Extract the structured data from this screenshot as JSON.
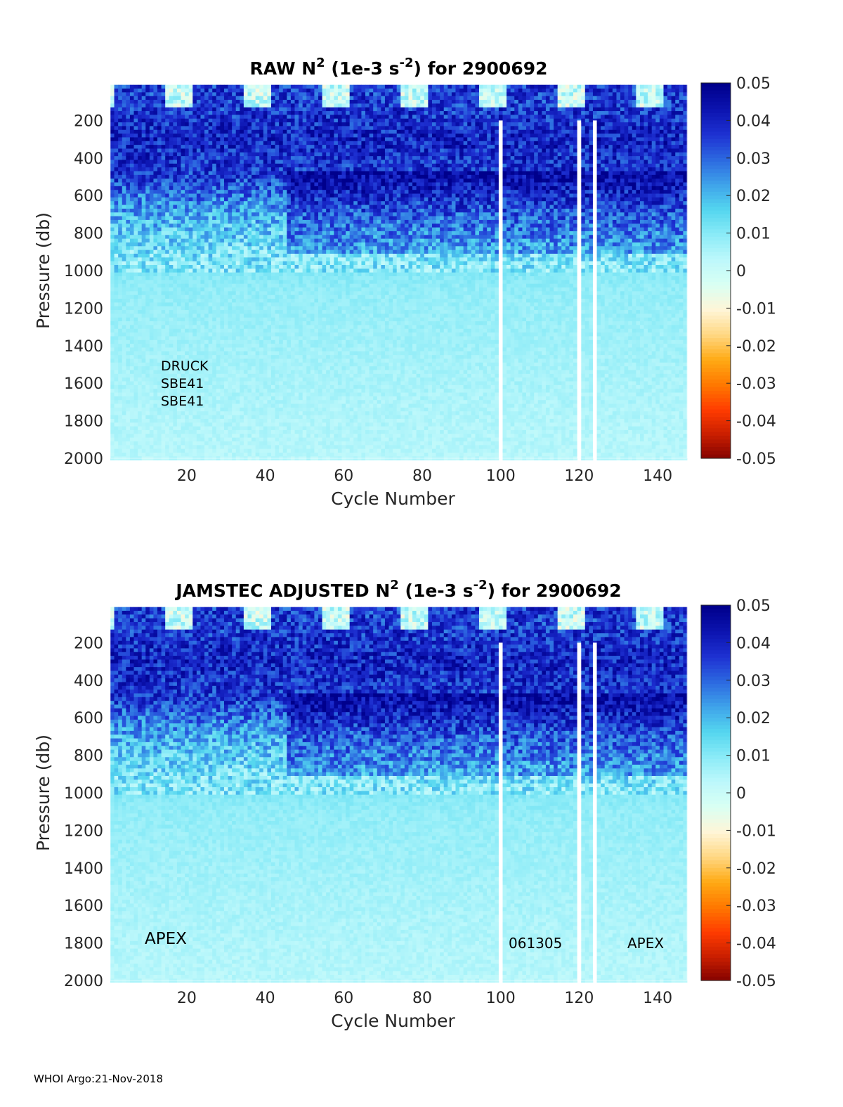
{
  "footer": "WHOI Argo:21-Nov-2018",
  "colors": {
    "colormap": [
      "#800000",
      "#c81e00",
      "#ff3c00",
      "#ff7800",
      "#ffaa14",
      "#ffd782",
      "#fff5d7",
      "#d9fff3",
      "#bdf8fb",
      "#8bebf7",
      "#54d6ef",
      "#3fa3ea",
      "#2c69e0",
      "#1e31d2",
      "#0c14b0",
      "#00008c"
    ],
    "missing": "#ffffff"
  },
  "chart_data": [
    {
      "type": "heatmap",
      "title": "RAW N² (1e-3 s⁻²) for 2900692",
      "title_parts": {
        "pre": "RAW N",
        "sup1": "2",
        "mid": " (1e-3 s",
        "sup2": "-2",
        "post": ") for 2900692"
      },
      "xlabel": "Cycle Number",
      "ylabel": "Pressure (db)",
      "xlim": [
        1,
        147
      ],
      "ylim": [
        2000,
        0
      ],
      "y_reversed": true,
      "xticks": [
        20,
        40,
        60,
        80,
        100,
        120,
        140
      ],
      "yticks": [
        200,
        400,
        600,
        800,
        1000,
        1200,
        1400,
        1600,
        1800,
        2000
      ],
      "colorbar": {
        "min": -0.05,
        "max": 0.05,
        "ticks": [
          "0.05",
          "0.04",
          "0.03",
          "0.02",
          "0.01",
          "0",
          "-0.01",
          "-0.02",
          "-0.03",
          "-0.04",
          "-0.05"
        ]
      },
      "annotations": [
        "DRUCK",
        "SBE41",
        "SBE41"
      ],
      "missing_profiles": [
        100,
        120,
        124
      ],
      "approx_profile": [
        {
          "p": 100,
          "n2": 0.036
        },
        {
          "p": 300,
          "n2": 0.04
        },
        {
          "p": 500,
          "n2": 0.036
        },
        {
          "p": 700,
          "n2": 0.022
        },
        {
          "p": 900,
          "n2": 0.013
        },
        {
          "p": 1100,
          "n2": 0.009
        },
        {
          "p": 1500,
          "n2": 0.0065
        },
        {
          "p": 2000,
          "n2": 0.004
        }
      ]
    },
    {
      "type": "heatmap",
      "title": "JAMSTEC  ADJUSTED N² (1e-3 s⁻²) for 2900692",
      "title_parts": {
        "pre": "JAMSTEC  ADJUSTED N",
        "sup1": "2",
        "mid": " (1e-3 s",
        "sup2": "-2",
        "post": ") for 2900692"
      },
      "xlabel": "Cycle Number",
      "ylabel": "Pressure (db)",
      "xlim": [
        1,
        147
      ],
      "ylim": [
        2000,
        0
      ],
      "y_reversed": true,
      "xticks": [
        20,
        40,
        60,
        80,
        100,
        120,
        140
      ],
      "yticks": [
        200,
        400,
        600,
        800,
        1000,
        1200,
        1400,
        1600,
        1800,
        2000
      ],
      "colorbar": {
        "min": -0.05,
        "max": 0.05,
        "ticks": [
          "0.05",
          "0.04",
          "0.03",
          "0.02",
          "0.01",
          "0",
          "-0.01",
          "-0.02",
          "-0.03",
          "-0.04",
          "-0.05"
        ]
      },
      "annotations": [
        "APEX",
        "061305",
        "APEX"
      ],
      "missing_profiles": [
        100,
        120,
        124
      ],
      "approx_profile": [
        {
          "p": 100,
          "n2": 0.036
        },
        {
          "p": 300,
          "n2": 0.04
        },
        {
          "p": 500,
          "n2": 0.036
        },
        {
          "p": 700,
          "n2": 0.022
        },
        {
          "p": 900,
          "n2": 0.013
        },
        {
          "p": 1100,
          "n2": 0.009
        },
        {
          "p": 1500,
          "n2": 0.0065
        },
        {
          "p": 2000,
          "n2": 0.004
        }
      ]
    }
  ]
}
